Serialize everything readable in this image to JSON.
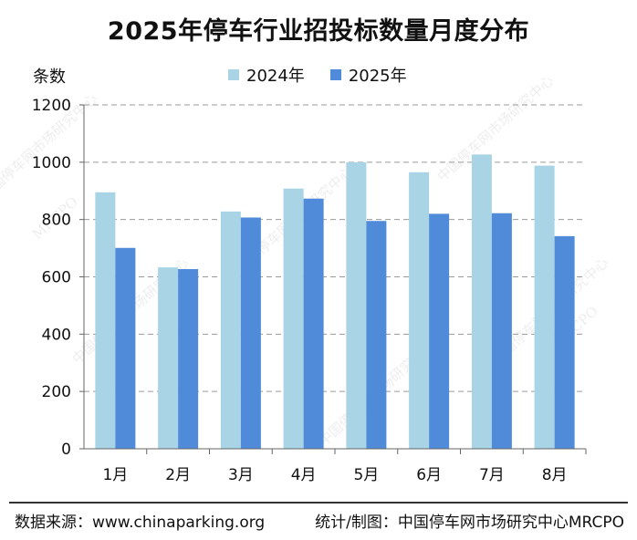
{
  "chart_data": {
    "type": "bar",
    "title": "2025年停车行业招投标数量月度分布",
    "ylabel": "条数",
    "xlabel": "",
    "categories": [
      "1月",
      "2月",
      "3月",
      "4月",
      "5月",
      "6月",
      "7月",
      "8月"
    ],
    "series": [
      {
        "name": "2024年",
        "color": "#a8d4e6",
        "values": [
          895,
          633,
          828,
          908,
          1000,
          965,
          1027,
          988
        ]
      },
      {
        "name": "2025年",
        "color": "#4f8bd9",
        "values": [
          701,
          627,
          807,
          873,
          795,
          820,
          822,
          742
        ]
      }
    ],
    "ylim": [
      0,
      1200
    ],
    "yticks": [
      0,
      200,
      400,
      600,
      800,
      1000,
      1200
    ],
    "grid": true,
    "legend_position": "top"
  },
  "footer": {
    "source": "数据来源：www.chinaparking.org",
    "credit": "统计/制图：中国停车网市场研究中心MRCPO"
  },
  "watermark": {
    "text_cn": "中国停车网市场研究中心",
    "text_en": "MRCPO"
  }
}
